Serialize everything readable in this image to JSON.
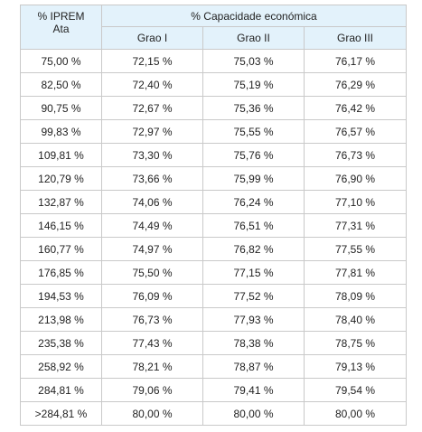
{
  "table": {
    "header": {
      "first_col_line1": "% IPREM",
      "first_col_line2": "Ata",
      "group_label": "% Capacidade económica",
      "sub_cols": [
        "Grao I",
        "Grao II",
        "Grao III"
      ]
    },
    "rows": [
      [
        "75,00 %",
        "72,15 %",
        "75,03 %",
        "76,17 %"
      ],
      [
        "82,50 %",
        "72,40 %",
        "75,19 %",
        "76,29 %"
      ],
      [
        "90,75 %",
        "72,67 %",
        "75,36 %",
        "76,42 %"
      ],
      [
        "99,83 %",
        "72,97 %",
        "75,55 %",
        "76,57 %"
      ],
      [
        "109,81 %",
        "73,30 %",
        "75,76 %",
        "76,73 %"
      ],
      [
        "120,79 %",
        "73,66 %",
        "75,99 %",
        "76,90 %"
      ],
      [
        "132,87 %",
        "74,06 %",
        "76,24 %",
        "77,10 %"
      ],
      [
        "146,15 %",
        "74,49 %",
        "76,51 %",
        "77,31 %"
      ],
      [
        "160,77 %",
        "74,97 %",
        "76,82 %",
        "77,55 %"
      ],
      [
        "176,85 %",
        "75,50 %",
        "77,15 %",
        "77,81 %"
      ],
      [
        "194,53 %",
        "76,09 %",
        "77,52 %",
        "78,09 %"
      ],
      [
        "213,98 %",
        "76,73 %",
        "77,93 %",
        "78,40 %"
      ],
      [
        "235,38 %",
        "77,43 %",
        "78,38 %",
        "78,75 %"
      ],
      [
        "258,92 %",
        "78,21 %",
        "78,87 %",
        "79,13 %"
      ],
      [
        "284,81 %",
        "79,06 %",
        "79,41 %",
        "79,54 %"
      ],
      [
        ">284,81 %",
        "80,00 %",
        "80,00 %",
        "80,00 %"
      ]
    ]
  },
  "colors": {
    "header_bg": "#e3f2fb",
    "border": "#c9c9c9",
    "text": "#222222"
  }
}
